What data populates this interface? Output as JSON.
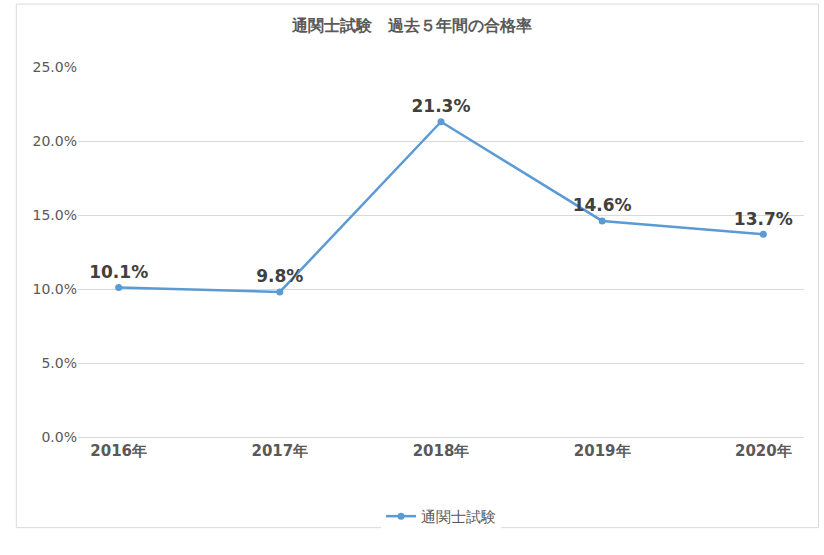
{
  "chart_data": {
    "type": "line",
    "title": "通関士試験　過去５年間の合格率",
    "categories": [
      "2016年",
      "2017年",
      "2018年",
      "2019年",
      "2020年"
    ],
    "series": [
      {
        "name": "通関士試験",
        "color": "#5b9bd5",
        "marker": "circle",
        "line_style": "solid",
        "values": [
          10.1,
          9.8,
          21.3,
          14.6,
          13.7
        ],
        "value_labels": [
          "10.1%",
          "9.8%",
          "21.3%",
          "14.6%",
          "13.7%"
        ]
      }
    ],
    "ylim": [
      0,
      25
    ],
    "yticks": [
      {
        "value": 0,
        "label": "0.0%"
      },
      {
        "value": 5,
        "label": "5.0%"
      },
      {
        "value": 10,
        "label": "10.0%"
      },
      {
        "value": 15,
        "label": "15.0%"
      },
      {
        "value": 20,
        "label": "20.0%"
      },
      {
        "value": 25,
        "label": "25.0%"
      }
    ],
    "grid": true,
    "legend": "bottom",
    "data_labels": true
  }
}
